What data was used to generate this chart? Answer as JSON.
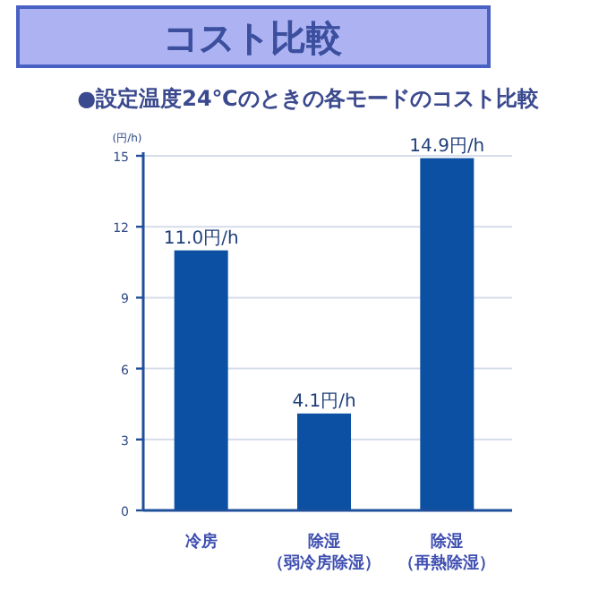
{
  "chart_data": {
    "type": "bar",
    "title": "コスト比較",
    "subtitle": "●設定温度24℃のときの各モードのコスト比較",
    "ylabel": "(円/h)",
    "categories": [
      "冷房",
      "除湿（弱冷房除湿）",
      "除湿（再熱除湿）"
    ],
    "values": [
      11.0,
      4.1,
      14.9
    ],
    "value_labels": [
      "11.0円/h",
      "4.1円/h",
      "14.9円/h"
    ],
    "color": "#0b50a2",
    "ylim": [
      0,
      15
    ],
    "yticks": [
      0,
      3,
      6,
      9,
      12,
      15
    ],
    "grid": "y"
  }
}
